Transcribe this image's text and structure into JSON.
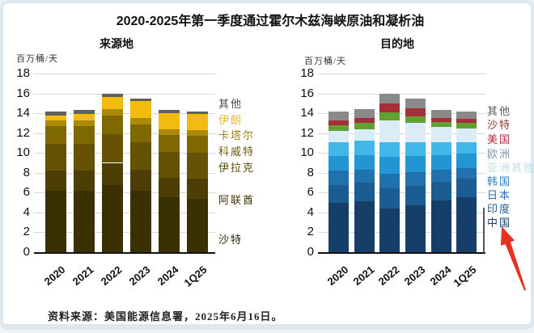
{
  "title": "2020-2025年第一季度通过霍尔木兹海峡原油和凝析油",
  "source_note": "资料来源：美国能源信息署，2025年6月16日。",
  "annotation": {
    "arrow_color": "#e63022",
    "arrow_target": "中国"
  },
  "chart_data": [
    {
      "type": "bar",
      "subtype": "stacked",
      "title": "来源地",
      "ylabel": "百万桶/天",
      "categories": [
        "2020",
        "2021",
        "2022",
        "2023",
        "2024",
        "1Q25"
      ],
      "ylim": [
        0,
        18
      ],
      "ytick_interval": 2,
      "grid": true,
      "legend_position": "right",
      "series": [
        {
          "name": "沙特",
          "color": "#3a3004",
          "label_color": "#2a2305",
          "values": [
            6.2,
            6.2,
            6.8,
            6.2,
            5.5,
            5.4
          ]
        },
        {
          "name": "阿联酋",
          "color": "#4c3e04",
          "label_color": "#3f3405",
          "values": [
            2.0,
            2.0,
            2.2,
            2.1,
            2.0,
            2.0
          ]
        },
        {
          "name": "伊拉克",
          "color": "#655204",
          "label_color": "#594706",
          "values": [
            2.7,
            2.7,
            2.9,
            2.8,
            2.6,
            2.6
          ]
        },
        {
          "name": "科威特",
          "color": "#806801",
          "label_color": "#71590a",
          "values": [
            1.8,
            1.8,
            1.9,
            1.8,
            1.7,
            1.7
          ]
        },
        {
          "name": "卡塔尔",
          "color": "#ab8a07",
          "label_color": "#a07e10",
          "values": [
            0.6,
            0.6,
            0.6,
            0.6,
            0.6,
            0.6
          ]
        },
        {
          "name": "伊朗",
          "color": "#f3ba10",
          "label_color": "#e6b83c",
          "values": [
            0.5,
            0.6,
            1.2,
            1.7,
            1.6,
            1.6
          ]
        },
        {
          "name": "其他",
          "color": "#606060",
          "label_color": "#4a4a4a",
          "values": [
            0.4,
            0.4,
            0.4,
            0.3,
            0.3,
            0.3
          ]
        }
      ]
    },
    {
      "type": "bar",
      "subtype": "stacked",
      "title": "目的地",
      "ylabel": "百万桶/天",
      "categories": [
        "2020",
        "2021",
        "2022",
        "2023",
        "2024",
        "1Q25"
      ],
      "ylim": [
        0,
        18
      ],
      "ytick_interval": 2,
      "grid": true,
      "legend_position": "right",
      "series": [
        {
          "name": "中国",
          "color": "#153f69",
          "label_color": "#173f6b",
          "values": [
            5.0,
            5.1,
            4.4,
            4.7,
            5.2,
            5.5
          ]
        },
        {
          "name": "印度",
          "color": "#1b5d92",
          "label_color": "#1e5f9e",
          "values": [
            1.8,
            1.9,
            2.0,
            2.0,
            1.9,
            1.9
          ]
        },
        {
          "name": "日本",
          "color": "#2072ae",
          "label_color": "#2a6db0",
          "values": [
            1.4,
            1.3,
            1.5,
            1.4,
            1.2,
            1.1
          ]
        },
        {
          "name": "韩国",
          "color": "#2196d3",
          "label_color": "#2e7fc2",
          "values": [
            1.5,
            1.5,
            1.7,
            1.6,
            1.5,
            1.4
          ]
        },
        {
          "name": "亚洲其他",
          "color": "#41b6e9",
          "label_color": "#c3ddec",
          "values": [
            1.4,
            1.4,
            1.5,
            1.4,
            1.3,
            1.2
          ]
        },
        {
          "name": "欧洲",
          "color": "#d9ecf8",
          "label_color": "#7f96ad",
          "values": [
            1.1,
            1.2,
            2.2,
            1.9,
            1.5,
            1.4
          ]
        },
        {
          "name": "美国",
          "color": "#61a032",
          "label_color": "#b03040",
          "values": [
            0.6,
            0.6,
            0.8,
            0.7,
            0.5,
            0.5
          ]
        },
        {
          "name": "沙特",
          "color": "#a42f38",
          "label_color": "#8a3a24",
          "values": [
            0.5,
            0.5,
            0.9,
            0.8,
            0.4,
            0.4
          ]
        },
        {
          "name": "其他",
          "color": "#8a8a8a",
          "label_color": "#5a5a5a",
          "values": [
            0.9,
            0.9,
            1.0,
            1.0,
            0.8,
            0.8
          ]
        }
      ]
    }
  ]
}
